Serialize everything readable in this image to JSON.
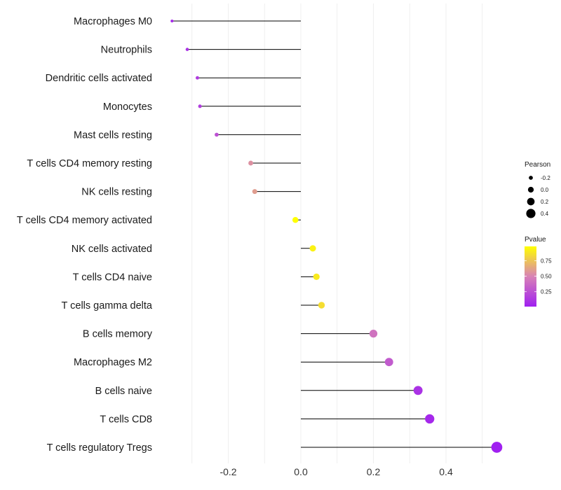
{
  "chart_data": {
    "type": "lollipop",
    "title": "",
    "xlabel": "",
    "ylabel": "",
    "xlim": [
      -0.36,
      0.56
    ],
    "x_ticks": [
      -0.2,
      0.0,
      0.2,
      0.4
    ],
    "x_tick_labels": [
      "-0.2",
      "0.0",
      "0.2",
      "0.4"
    ],
    "grid": true,
    "categories": [
      "Macrophages M0",
      "Neutrophils",
      "Dendritic cells activated",
      "Monocytes",
      "Mast cells resting",
      "T cells CD4 memory resting",
      "NK cells resting",
      "T cells CD4 memory activated",
      "NK cells activated",
      "T cells CD4 naive",
      "T cells gamma delta",
      "B cells memory",
      "Macrophages M2",
      "B cells naive",
      "T cells CD8",
      "T cells regulatory  Tregs"
    ],
    "pearson": [
      -0.355,
      -0.313,
      -0.285,
      -0.278,
      -0.232,
      -0.138,
      -0.127,
      -0.015,
      0.033,
      0.043,
      0.057,
      0.2,
      0.243,
      0.323,
      0.355,
      0.54
    ],
    "pvalue": [
      0.05,
      0.1,
      0.15,
      0.16,
      0.25,
      0.55,
      0.6,
      0.98,
      0.93,
      0.9,
      0.85,
      0.42,
      0.3,
      0.1,
      0.05,
      0.01
    ],
    "size_legend": {
      "title": "Pearson",
      "labels": [
        "-0.2",
        "0.0",
        "0.2",
        "0.4"
      ],
      "values": [
        -0.2,
        0.0,
        0.2,
        0.4
      ]
    },
    "color_legend": {
      "title": "Pvalue",
      "labels": [
        "0.75",
        "0.50",
        "0.25"
      ],
      "values": [
        0.75,
        0.5,
        0.25
      ],
      "range": [
        0.01,
        0.98
      ],
      "colors": [
        "#a020f0",
        "#d882b6",
        "#ffff00"
      ]
    },
    "legend_position": "right"
  }
}
